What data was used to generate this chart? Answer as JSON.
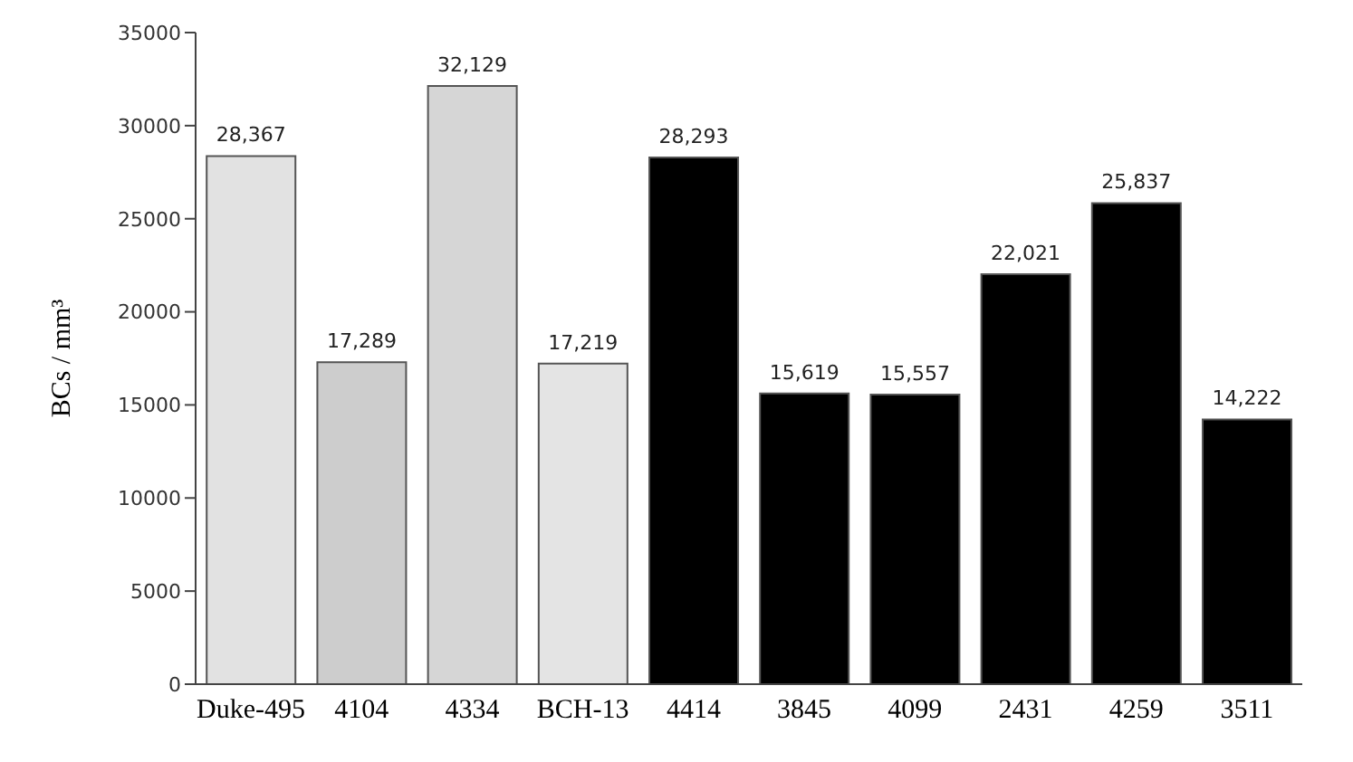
{
  "chart_data": {
    "type": "bar",
    "ylabel": "BCs / mm³",
    "categories": [
      "Duke-495",
      "4104",
      "4334",
      "BCH-13",
      "4414",
      "3845",
      "4099",
      "2431",
      "4259",
      "3511"
    ],
    "values": [
      28367,
      17289,
      32129,
      17219,
      28293,
      15619,
      15557,
      22021,
      25837,
      14222
    ],
    "colors": [
      "#e2e2e2",
      "#cdcdcd",
      "#d6d6d6",
      "#e4e4e4",
      "#000000",
      "#000000",
      "#000000",
      "#000000",
      "#000000",
      "#000000"
    ],
    "value_labels": [
      "28,367",
      "17,289",
      "32,129",
      "17,219",
      "28,293",
      "15,619",
      "15,557",
      "22,021",
      "25,837",
      "14,222"
    ],
    "ylim": [
      0,
      35000
    ],
    "yticks": [
      0,
      5000,
      10000,
      15000,
      20000,
      25000,
      30000,
      35000
    ],
    "grid": false,
    "legend": false
  }
}
